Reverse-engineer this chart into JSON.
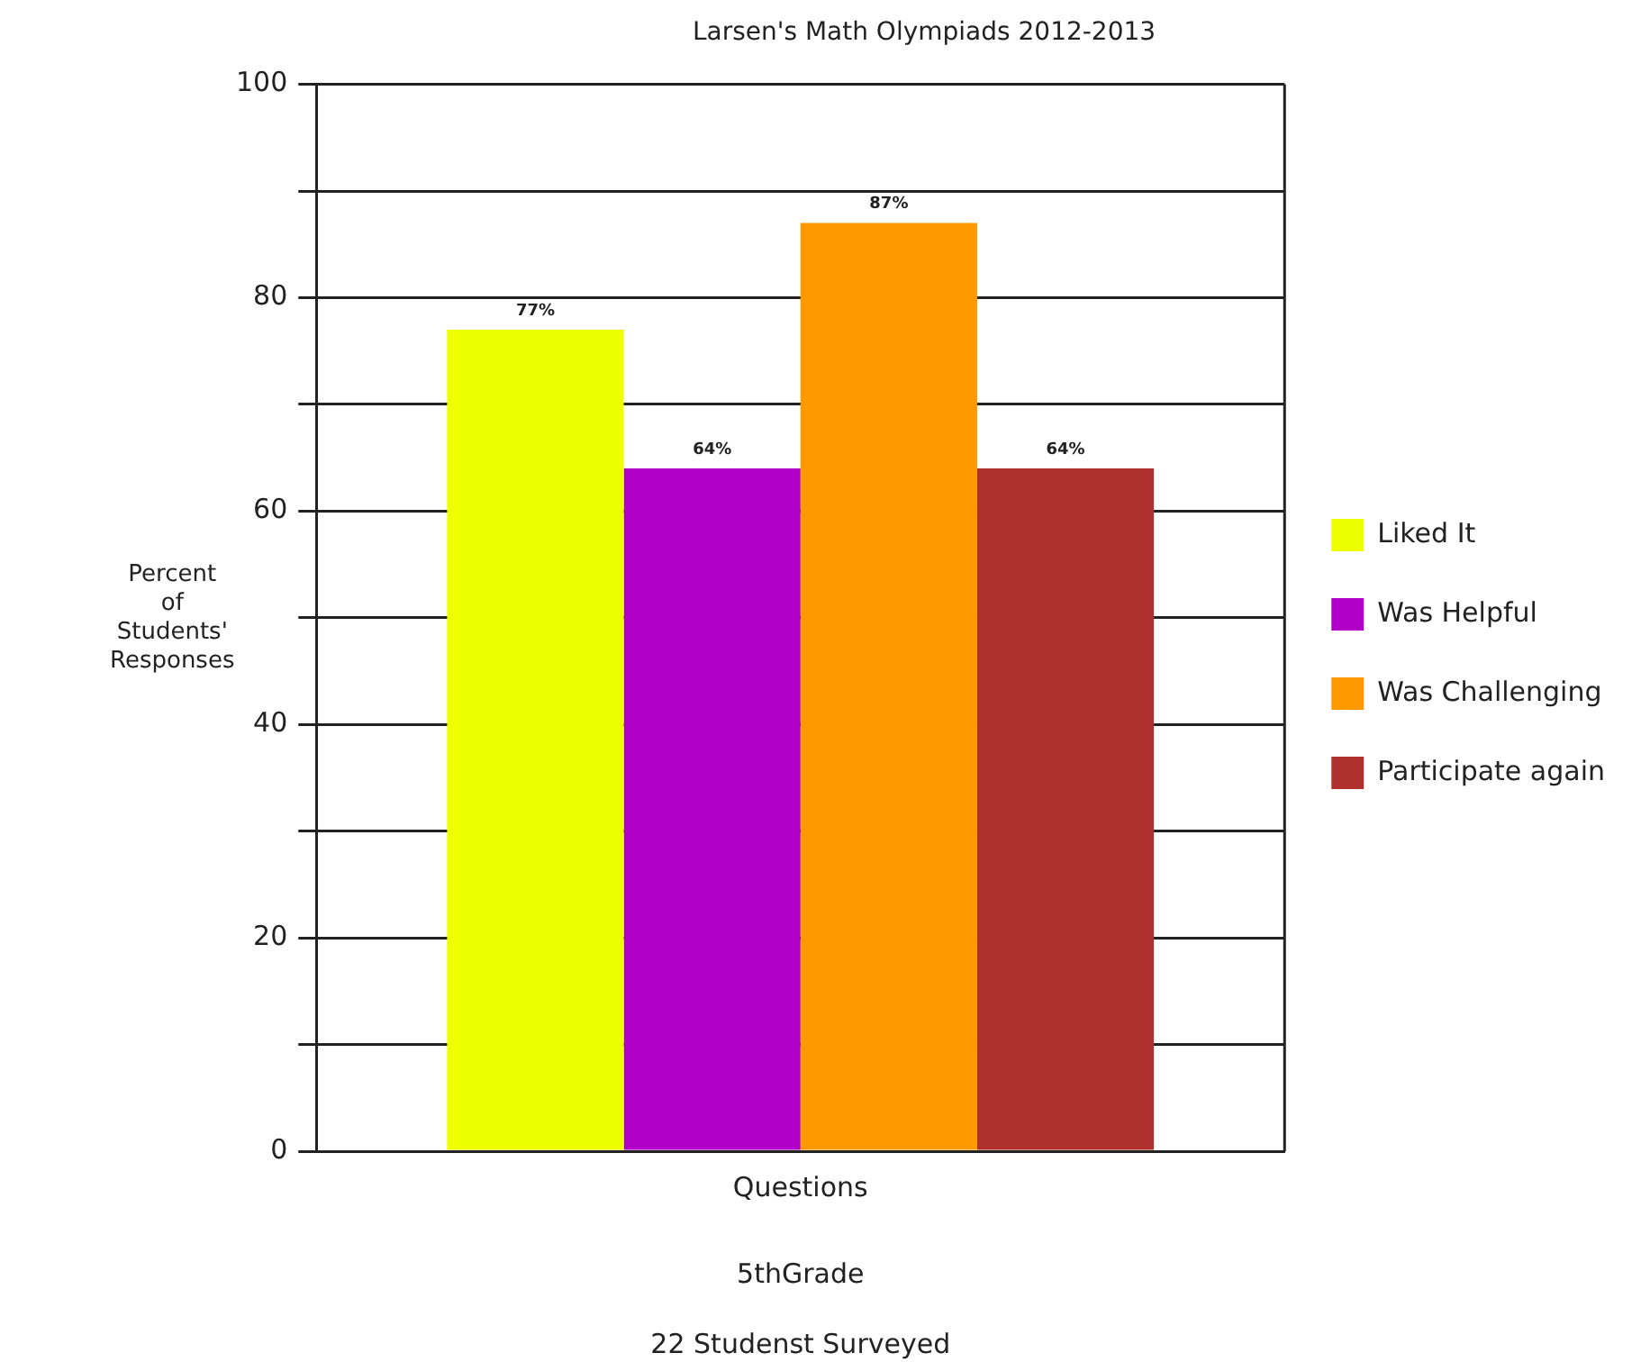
{
  "chart_data": {
    "type": "bar",
    "title": "Larsen's Math Olympiads 2012-2013",
    "xlabel": "5thGrade",
    "ylabel": "Percent\nof\nStudents'\nResponses",
    "annotations": [
      "22 Studenst Surveyed"
    ],
    "categories": [
      "Questions"
    ],
    "series": [
      {
        "name": "Liked It",
        "color": "#eeff00",
        "values": [
          77
        ],
        "value_labels": [
          "77%"
        ]
      },
      {
        "name": "Was Helpful",
        "color": "#b000c8",
        "values": [
          64
        ],
        "value_labels": [
          "64%"
        ]
      },
      {
        "name": "Was Challenging",
        "color": "#ff9900",
        "values": [
          87
        ],
        "value_labels": [
          "87%"
        ]
      },
      {
        "name": "Participate again",
        "color": "#b03030",
        "values": [
          64
        ],
        "value_labels": [
          "64%"
        ]
      }
    ],
    "ylim": [
      0,
      100
    ],
    "yticks": [
      0,
      {
        "value": 10,
        "label": null
      },
      20,
      {
        "value": 30,
        "label": null
      },
      40,
      {
        "value": 50,
        "label": null
      },
      60,
      {
        "value": 70,
        "label": null
      },
      80,
      {
        "value": 90,
        "label": null
      },
      100
    ],
    "grid": "y",
    "legend": "right"
  }
}
